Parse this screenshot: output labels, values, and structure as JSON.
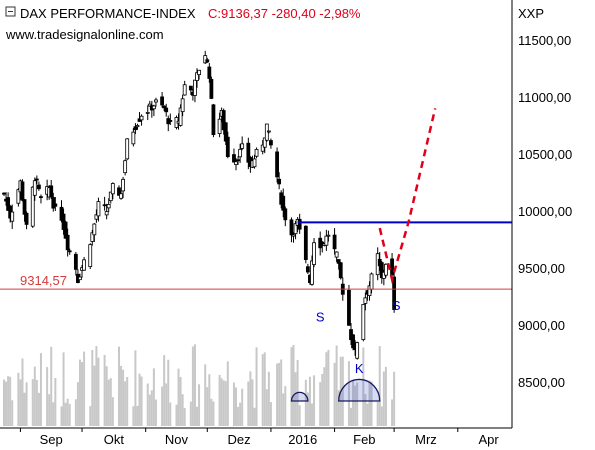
{
  "header": {
    "title": "DAX PERFORMANCE-INDEX",
    "quote": "C:9136,37 -280,40 -2,98%",
    "source": "www.tradesignalonline.com",
    "currency": "XXP"
  },
  "colors": {
    "title": "#000000",
    "quote": "#e0001a",
    "candle_up": "#ffffff",
    "candle_down": "#000000",
    "resistance_line": "#0000c8",
    "support_line": "#d23c3c",
    "projection": "#e0001a",
    "pattern_labels": "#0000c8",
    "volume": "#c8c8c8"
  },
  "chart_data": {
    "type": "candlestick",
    "title": "DAX PERFORMANCE-INDEX",
    "x_ticks": [
      "Sep",
      "Okt",
      "Nov",
      "Dez",
      "2016",
      "Feb",
      "Mrz",
      "Apr"
    ],
    "y_ticks": [
      "8500,00",
      "9000,00",
      "9500,00",
      "10000,00",
      "10500,00",
      "11000,00",
      "11500,00"
    ],
    "ylim": [
      8150,
      11700
    ],
    "y_scale": "linear",
    "grid": false,
    "close_path": [
      [
        "2015-08-24",
        10150
      ],
      [
        "2015-08-27",
        9960
      ],
      [
        "2015-09-01",
        10250
      ],
      [
        "2015-09-04",
        9850
      ],
      [
        "2015-09-08",
        10300
      ],
      [
        "2015-09-11",
        10100
      ],
      [
        "2015-09-15",
        10200
      ],
      [
        "2015-09-18",
        10000
      ],
      [
        "2015-09-21",
        9950
      ],
      [
        "2015-09-24",
        9700
      ],
      [
        "2015-09-28",
        9500
      ],
      [
        "2015-09-29",
        9400
      ],
      [
        "2015-10-02",
        9560
      ],
      [
        "2015-10-06",
        9800
      ],
      [
        "2015-10-09",
        10050
      ],
      [
        "2015-10-13",
        10000
      ],
      [
        "2015-10-16",
        10200
      ],
      [
        "2015-10-20",
        10150
      ],
      [
        "2015-10-23",
        10600
      ],
      [
        "2015-10-27",
        10750
      ],
      [
        "2015-10-30",
        10850
      ],
      [
        "2015-11-03",
        10900
      ],
      [
        "2015-11-06",
        10950
      ],
      [
        "2015-11-10",
        10900
      ],
      [
        "2015-11-13",
        10750
      ],
      [
        "2015-11-17",
        10800
      ],
      [
        "2015-11-20",
        11100
      ],
      [
        "2015-11-24",
        11050
      ],
      [
        "2015-11-27",
        11250
      ],
      [
        "2015-11-30",
        11380
      ],
      [
        "2015-12-02",
        11200
      ],
      [
        "2015-12-04",
        10700
      ],
      [
        "2015-12-08",
        10850
      ],
      [
        "2015-12-11",
        10500
      ],
      [
        "2015-12-15",
        10450
      ],
      [
        "2015-12-18",
        10550
      ],
      [
        "2015-12-22",
        10400
      ],
      [
        "2015-12-28",
        10600
      ],
      [
        "2015-12-30",
        10750
      ],
      [
        "2016-01-04",
        10300
      ],
      [
        "2016-01-07",
        10000
      ],
      [
        "2016-01-11",
        9800
      ],
      [
        "2016-01-14",
        9900
      ],
      [
        "2016-01-18",
        9550
      ],
      [
        "2016-01-20",
        9400
      ],
      [
        "2016-01-22",
        9750
      ],
      [
        "2016-01-26",
        9700
      ],
      [
        "2016-01-29",
        9800
      ],
      [
        "2016-02-02",
        9600
      ],
      [
        "2016-02-05",
        9300
      ],
      [
        "2016-02-09",
        8900
      ],
      [
        "2016-02-11",
        8750
      ],
      [
        "2016-02-15",
        9200
      ],
      [
        "2016-02-18",
        9350
      ],
      [
        "2016-02-22",
        9600
      ],
      [
        "2016-02-24",
        9400
      ],
      [
        "2016-02-26",
        9550
      ],
      [
        "2016-02-29",
        9420
      ],
      [
        "2016-03-01",
        9136
      ]
    ],
    "support_level": 9314.57,
    "support_label": "9314,57",
    "resistance_level": 9900,
    "resistance_start": "2016-01-14",
    "projection_path": [
      [
        "2016-02-23",
        9850
      ],
      [
        "2016-02-29",
        9400
      ],
      [
        "2016-03-08",
        9900
      ],
      [
        "2016-03-21",
        10900
      ]
    ],
    "pattern_labels": [
      {
        "text": "S",
        "date": "2016-01-25",
        "value": 9030
      },
      {
        "text": "K",
        "date": "2016-02-13",
        "value": 8580
      },
      {
        "text": "S",
        "date": "2016-03-02",
        "value": 9130
      }
    ],
    "volume_domes": [
      {
        "center": "2016-01-15",
        "half_width_days": 4
      },
      {
        "center": "2016-02-13",
        "half_width_days": 10
      }
    ]
  }
}
